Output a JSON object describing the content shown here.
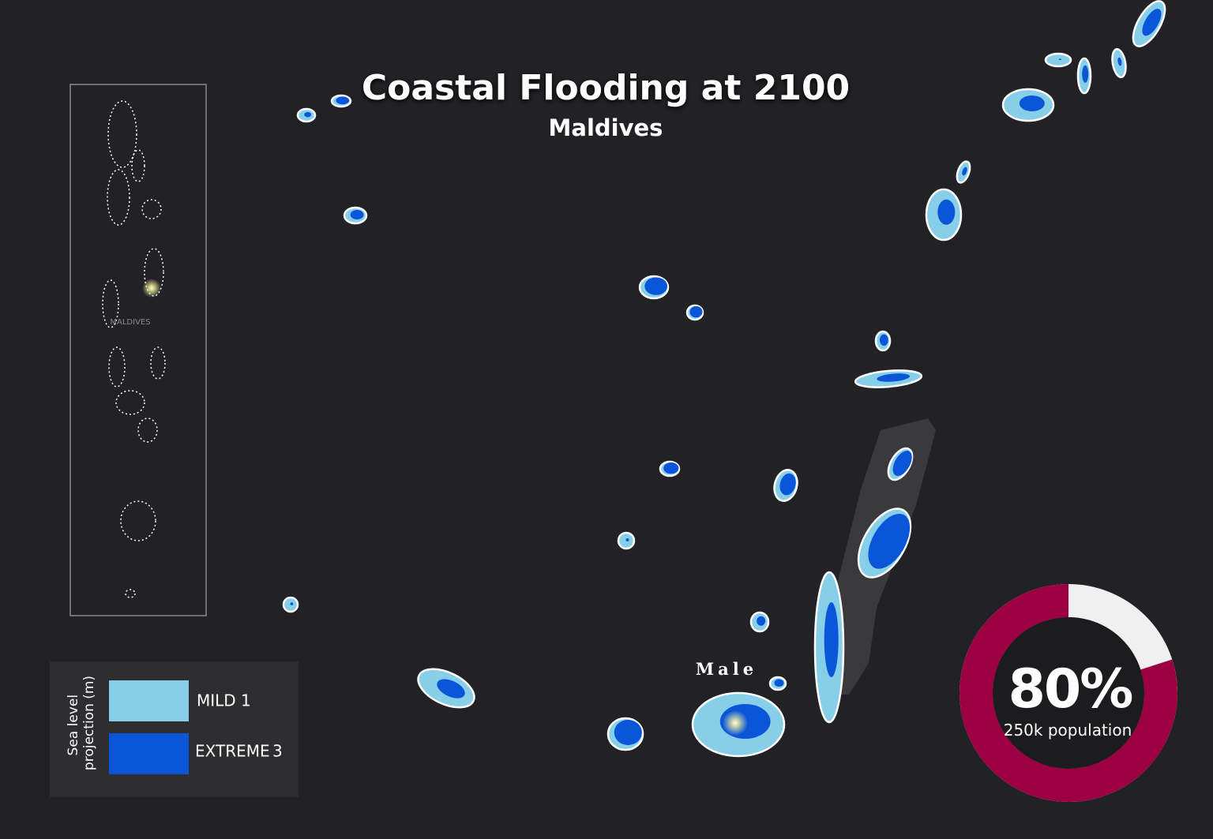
{
  "header": {
    "title": "Coastal Flooding at 2100",
    "subtitle": "Maldives"
  },
  "inset_map": {
    "label": "MALDIVES"
  },
  "map": {
    "city_label": "Male"
  },
  "legend": {
    "title_lines": [
      "Sea level",
      "projection (m)"
    ],
    "items": [
      {
        "label": "MILD",
        "value": 1
      },
      {
        "label": "EXTREME",
        "value": 3
      }
    ]
  },
  "donut": {
    "percent": {
      "value": 80,
      "label": "80%"
    },
    "caption": "250k population"
  }
}
